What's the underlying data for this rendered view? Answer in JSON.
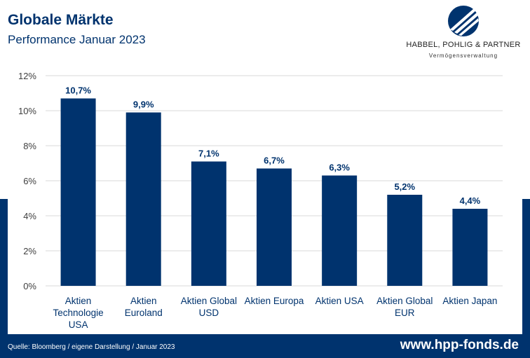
{
  "header": {
    "title": "Globale Märkte",
    "subtitle": "Performance Januar 2023"
  },
  "logo": {
    "name": "HABBEL, POHLIG & PARTNER",
    "tagline": "Vermögensverwaltung"
  },
  "footer": {
    "source": "Quelle: Bloomberg / eigene Darstellung / Januar 2023",
    "url": "www.hpp-fonds.de"
  },
  "colors": {
    "brand": "#00336e",
    "bar": "#00336e",
    "label": "#00336e"
  },
  "chart_data": {
    "type": "bar",
    "categories": [
      [
        "Aktien",
        "Technologie",
        "USA"
      ],
      [
        "Aktien",
        "Euroland"
      ],
      [
        "Aktien Global",
        "USD"
      ],
      [
        "Aktien Europa"
      ],
      [
        "Aktien USA"
      ],
      [
        "Aktien Global",
        "EUR"
      ],
      [
        "Aktien Japan"
      ]
    ],
    "values": [
      10.7,
      9.9,
      7.1,
      6.7,
      6.3,
      5.2,
      4.4
    ],
    "data_labels": [
      "10,7%",
      "9,9%",
      "7,1%",
      "6,7%",
      "6,3%",
      "5,2%",
      "4,4%"
    ],
    "yticks": [
      "0%",
      "2%",
      "4%",
      "6%",
      "8%",
      "10%",
      "12%"
    ],
    "ylim": [
      0,
      12
    ],
    "grid": true
  }
}
